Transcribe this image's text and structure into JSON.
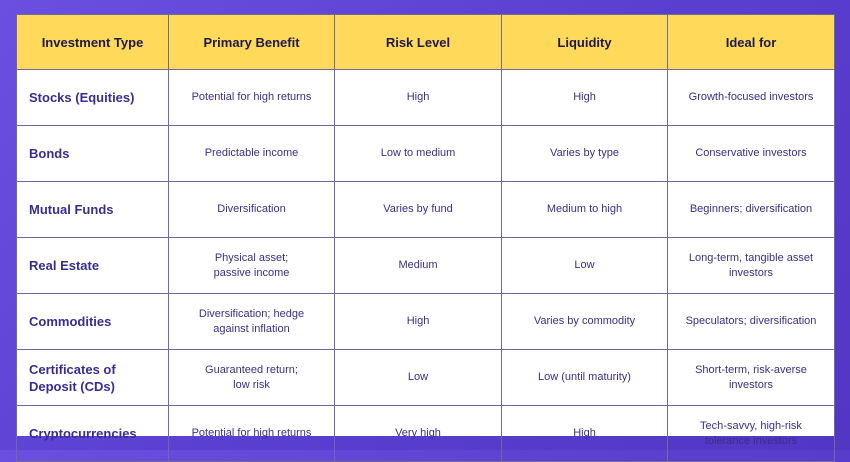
{
  "table": {
    "headers": [
      "Investment Type",
      "Primary Benefit",
      "Risk Level",
      "Liquidity",
      "Ideal for"
    ],
    "rows": [
      {
        "type": "Stocks (Equities)",
        "benefit": "Potential for high returns",
        "risk": "High",
        "liquidity": "High",
        "ideal": "Growth-focused investors"
      },
      {
        "type": "Bonds",
        "benefit": "Predictable income",
        "risk": "Low to medium",
        "liquidity": "Varies by type",
        "ideal": "Conservative investors"
      },
      {
        "type": "Mutual Funds",
        "benefit": "Diversification",
        "risk": "Varies by fund",
        "liquidity": "Medium to high",
        "ideal": "Beginners; diversification"
      },
      {
        "type": "Real Estate",
        "benefit": "Physical asset;\npassive income",
        "risk": "Medium",
        "liquidity": "Low",
        "ideal": "Long-term, tangible asset\ninvestors"
      },
      {
        "type": "Commodities",
        "benefit": "Diversification; hedge\nagainst inflation",
        "risk": "High",
        "liquidity": "Varies by commodity",
        "ideal": "Speculators; diversification"
      },
      {
        "type": "Certificates  of\nDeposit (CDs)",
        "benefit": "Guaranteed return;\nlow risk",
        "risk": "Low",
        "liquidity": "Low (until maturity)",
        "ideal": "Short-term, risk-averse\ninvestors"
      },
      {
        "type": "Cryptocurrencies",
        "benefit": "Potential for high returns",
        "risk": "Very high",
        "liquidity": "High",
        "ideal": "Tech-savvy, high-risk\ntolerance investors"
      }
    ]
  }
}
